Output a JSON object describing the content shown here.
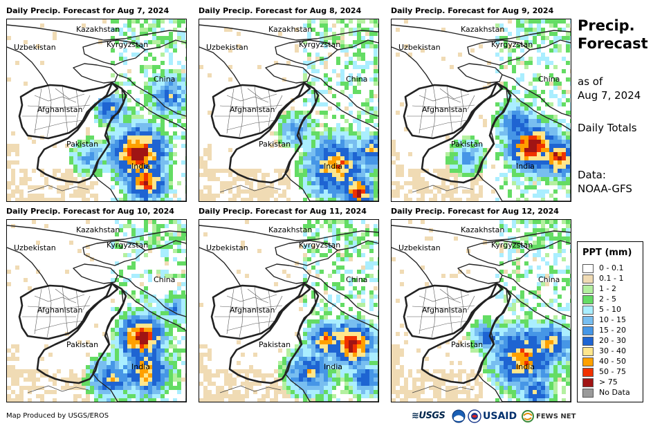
{
  "panels": [
    {
      "title": "Daily Precip. Forecast for Aug 7, 2024"
    },
    {
      "title": "Daily Precip. Forecast for Aug 8, 2024"
    },
    {
      "title": "Daily Precip. Forecast for Aug 9, 2024"
    },
    {
      "title": "Daily Precip. Forecast for Aug 10, 2024"
    },
    {
      "title": "Daily Precip. Forecast for Aug 11, 2024"
    },
    {
      "title": "Daily Precip. Forecast for Aug 12, 2024"
    }
  ],
  "map_labels": {
    "kazakhstan": "Kazakhstan",
    "uzbekistan": "Uzbekistan",
    "kyrgyzstan": "Kyrgyzstan",
    "china": "China",
    "afghanistan": "Afghanistan",
    "pakistan": "Pakistan",
    "india": "India"
  },
  "side": {
    "title_line1": "Precip.",
    "title_line2": "Forecast",
    "asof_line1": "as of",
    "asof_line2": "Aug 7, 2024",
    "totals": "Daily Totals",
    "data_line1": "Data:",
    "data_line2": "NOAA-GFS"
  },
  "legend": {
    "title": "PPT (mm)",
    "items": [
      {
        "label": "0 - 0.1",
        "color": "#ffffff"
      },
      {
        "label": "0.1 - 1",
        "color": "#f0dbb4"
      },
      {
        "label": "1 - 2",
        "color": "#b4f0a0"
      },
      {
        "label": "2 - 5",
        "color": "#64dc64"
      },
      {
        "label": "5 - 10",
        "color": "#aaeeff"
      },
      {
        "label": "10 - 15",
        "color": "#78bef0"
      },
      {
        "label": "15 - 20",
        "color": "#4696e6"
      },
      {
        "label": "20 - 30",
        "color": "#1e64d2"
      },
      {
        "label": "30 - 40",
        "color": "#ffe68c"
      },
      {
        "label": "40 - 50",
        "color": "#ffa000"
      },
      {
        "label": "50 - 75",
        "color": "#f03200"
      },
      {
        "label": "> 75",
        "color": "#a01414"
      },
      {
        "label": "No Data",
        "color": "#9a9a9a"
      }
    ]
  },
  "credit": "Map Produced by USGS/EROS",
  "logos": {
    "usgs": "USGS",
    "usaid": "USAID",
    "fews": "FEWS NET"
  }
}
